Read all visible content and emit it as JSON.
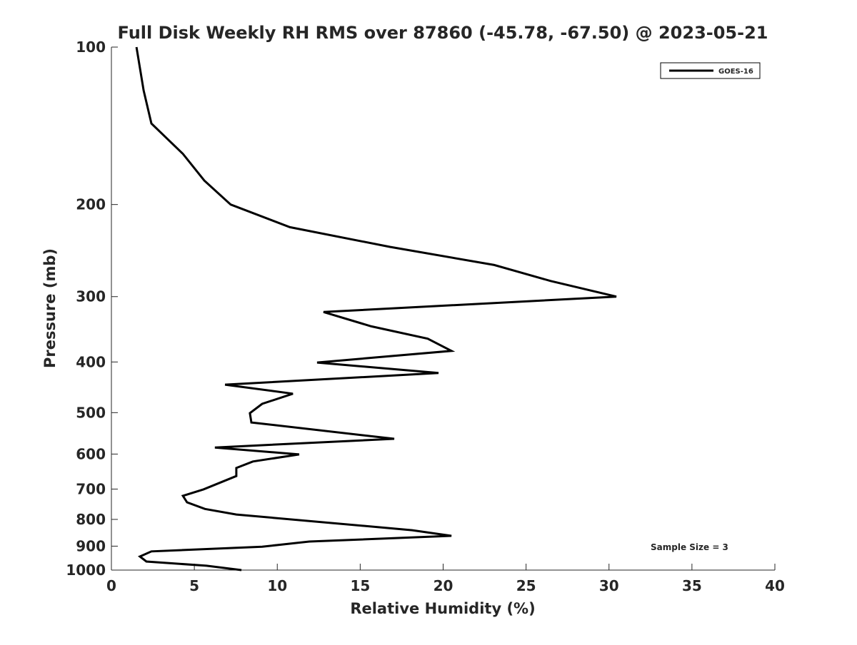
{
  "chart_data": {
    "type": "line",
    "title": "Full Disk Weekly RH RMS over 87860 (-45.78, -67.50) @ 2023-05-21",
    "xlabel": "Relative Humidity (%)",
    "ylabel": "Pressure (mb)",
    "xlim": [
      0,
      40
    ],
    "ylim": [
      1000,
      100
    ],
    "yscale": "log",
    "y_reversed": true,
    "xticks": [
      0,
      5,
      10,
      15,
      20,
      25,
      30,
      35,
      40
    ],
    "yticks": [
      100,
      200,
      300,
      400,
      500,
      600,
      700,
      800,
      900,
      1000
    ],
    "grid": false,
    "legend_position": "top-right",
    "annotation": "Sample Size = 3",
    "series": [
      {
        "name": "GOES-16",
        "color": "#000000",
        "x": [
          1.51,
          1.94,
          2.41,
          4.31,
          5.6,
          7.19,
          10.76,
          16.79,
          23.08,
          26.48,
          30.44,
          12.79,
          15.67,
          19.07,
          20.5,
          12.4,
          19.72,
          6.85,
          10.94,
          9.09,
          8.35,
          8.44,
          17.05,
          6.24,
          11.32,
          8.53,
          7.53,
          7.53,
          5.55,
          4.31,
          4.56,
          5.64,
          7.53,
          18.13,
          20.5,
          11.93,
          9.09,
          2.41,
          1.72,
          2.11,
          5.73,
          7.84
        ],
        "y": [
          100,
          121,
          140,
          160,
          180,
          200,
          221,
          241,
          261,
          280,
          300,
          321,
          342,
          361,
          381,
          401,
          420,
          442,
          460,
          481,
          501,
          522,
          561,
          583,
          601,
          620,
          638,
          661,
          701,
          721,
          742,
          764,
          783,
          839,
          860,
          882,
          902,
          921,
          942,
          963,
          981,
          1000
        ]
      }
    ]
  }
}
